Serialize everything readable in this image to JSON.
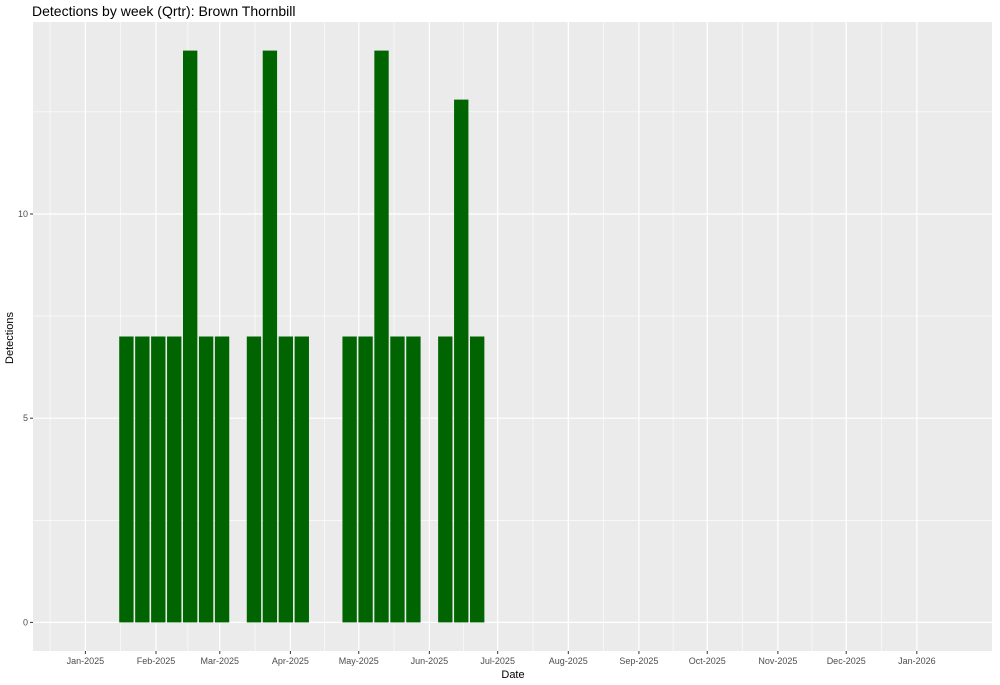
{
  "chart_data": {
    "type": "bar",
    "title": "Detections by week (Qrtr): Brown Thornbill",
    "xlabel": "Date",
    "ylabel": "Detections",
    "xlim": [
      "2024-12-09",
      "2026-02-03"
    ],
    "ylim": [
      -0.7,
      14.7
    ],
    "y_ticks": [
      0,
      5,
      10
    ],
    "x_ticks": [
      {
        "date": "2025-01-01",
        "label": "Jan-2025"
      },
      {
        "date": "2025-02-01",
        "label": "Feb-2025"
      },
      {
        "date": "2025-03-01",
        "label": "Mar-2025"
      },
      {
        "date": "2025-04-01",
        "label": "Apr-2025"
      },
      {
        "date": "2025-05-01",
        "label": "May-2025"
      },
      {
        "date": "2025-06-01",
        "label": "Jun-2025"
      },
      {
        "date": "2025-07-01",
        "label": "Jul-2025"
      },
      {
        "date": "2025-08-01",
        "label": "Aug-2025"
      },
      {
        "date": "2025-09-01",
        "label": "Sep-2025"
      },
      {
        "date": "2025-10-01",
        "label": "Oct-2025"
      },
      {
        "date": "2025-11-01",
        "label": "Nov-2025"
      },
      {
        "date": "2025-12-01",
        "label": "Dec-2025"
      },
      {
        "date": "2026-01-01",
        "label": "Jan-2026"
      }
    ],
    "x": [
      "2025-01-19",
      "2025-01-26",
      "2025-02-02",
      "2025-02-09",
      "2025-02-16",
      "2025-02-23",
      "2025-03-02",
      "2025-03-16",
      "2025-03-23",
      "2025-03-30",
      "2025-04-06",
      "2025-04-27",
      "2025-05-04",
      "2025-05-11",
      "2025-05-18",
      "2025-05-25",
      "2025-06-08",
      "2025-06-15",
      "2025-06-22"
    ],
    "values": [
      7,
      7,
      7,
      7,
      14,
      7,
      7,
      7,
      14,
      7,
      7,
      7,
      7,
      14,
      7,
      7,
      7,
      12.8,
      7
    ],
    "grid": true,
    "bar_color": "#006400",
    "panel_color": "#ebebeb"
  }
}
